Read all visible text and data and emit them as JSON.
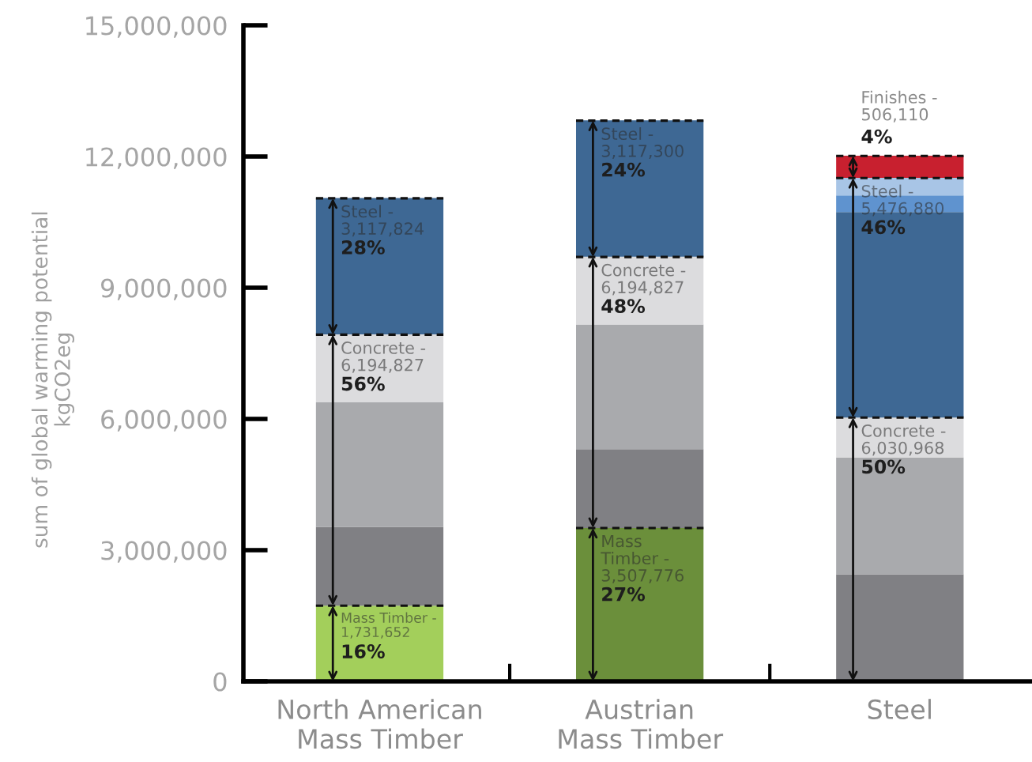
{
  "chart_data": {
    "type": "bar",
    "stacked": true,
    "ylabel": "sum of global warming potential\nkgCO2eg",
    "categories": [
      "North American\nMass Timber",
      "Austrian\nMass Timber",
      "Steel"
    ],
    "series": [
      {
        "colors": [
          "#a3cf5b",
          "#6b8f3b",
          null
        ],
        "values": [
          1731652,
          3507776,
          null
        ]
      },
      {
        "color": "#808084",
        "values": [
          1800000,
          1800000,
          2450000
        ]
      },
      {
        "color": "#a9aaad",
        "values": [
          2850000,
          2850000,
          2670000
        ]
      },
      {
        "color": "#dcdcde",
        "values": [
          1550000,
          1550000,
          910000
        ]
      },
      {
        "color": "#3e6894",
        "values": [
          3117824,
          3117300,
          4700000
        ]
      },
      {
        "color": "#5f93cf",
        "values": [
          null,
          null,
          380000
        ]
      },
      {
        "color": "#a8c5e6",
        "values": [
          null,
          null,
          400000
        ]
      },
      {
        "color": "#c8202f",
        "values": [
          null,
          null,
          506110
        ]
      }
    ],
    "ylim": [
      0,
      15000000
    ],
    "yticks": [
      0,
      {
        "value": 3000000,
        "label": "3,000,000"
      },
      {
        "value": 6000000,
        "label": "6,000,000"
      },
      {
        "value": 9000000,
        "label": "9,000,000"
      },
      {
        "value": 12000000,
        "label": "12,000,000"
      },
      {
        "value": 15000000,
        "label": "15,000,000"
      }
    ],
    "annotations": [
      {
        "text": "Mass Timber -\n1,731,652\n16%",
        "x": "North American\nMass Timber",
        "y": 1731652
      },
      {
        "text": "Concrete -\n6,194,827\n56%",
        "x": "North American\nMass Timber",
        "y": 7926479
      },
      {
        "text": "Steel -\n3,117,824\n28%",
        "x": "North American\nMass Timber",
        "y": 11044303
      },
      {
        "text": "Mass\nTimber -\n3,507,776\n27%",
        "x": "Austrian\nMass Timber",
        "y": 3507776
      },
      {
        "text": "Concrete -\n6,194,827\n48%",
        "x": "Austrian\nMass Timber",
        "y": 9702603
      },
      {
        "text": "Steel -\n3,117,300\n24%",
        "x": "Austrian\nMass Timber",
        "y": 12819903
      },
      {
        "text": "Concrete -\n6,030,968\n50%",
        "x": "Steel",
        "y": 6030968
      },
      {
        "text": "Steel -\n5,476,880\n46%",
        "x": "Steel",
        "y": 11507848
      },
      {
        "text": "Finishes -\n506,110\n4%",
        "x": "Steel",
        "y": 12013958
      }
    ]
  }
}
